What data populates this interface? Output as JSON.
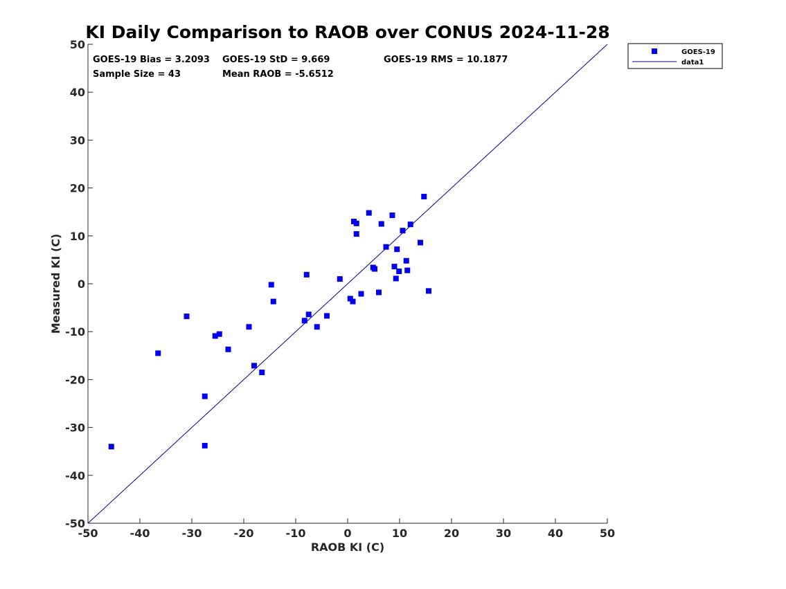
{
  "chart_data": {
    "type": "scatter",
    "title": "KI Daily Comparison to RAOB over CONUS 2024-11-28",
    "xlabel": "RAOB KI (C)",
    "ylabel": "Measured KI (C)",
    "xlim": [
      -50,
      50
    ],
    "ylim": [
      -50,
      50
    ],
    "xticks": [
      -50,
      -40,
      -30,
      -20,
      -10,
      0,
      10,
      20,
      30,
      40,
      50
    ],
    "yticks": [
      -50,
      -40,
      -30,
      -20,
      -10,
      0,
      10,
      20,
      30,
      40,
      50
    ],
    "xtick_labels": [
      "-50",
      "-40",
      "-30",
      "-20",
      "-10",
      "0",
      "10",
      "20",
      "30",
      "40",
      "50"
    ],
    "ytick_labels": [
      "-50",
      "-40",
      "-30",
      "-20",
      "-10",
      "0",
      "10",
      "20",
      "30",
      "40",
      "50"
    ],
    "grid": false,
    "legend_position": "outside-top-right",
    "stats": {
      "bias": "GOES-19 Bias = 3.2093",
      "std": "GOES-19 StD = 9.669",
      "rms": "GOES-19 RMS = 10.1877",
      "sample": "Sample Size = 43",
      "mean": "Mean RAOB = -5.6512"
    },
    "series": [
      {
        "name": "GOES-19",
        "kind": "scatter",
        "marker": "square",
        "color": "#0000ee",
        "points": [
          [
            -45.5,
            -34.0
          ],
          [
            -36.5,
            -14.5
          ],
          [
            -31.0,
            -6.8
          ],
          [
            -27.5,
            -23.5
          ],
          [
            -27.5,
            -33.8
          ],
          [
            -25.5,
            -10.9
          ],
          [
            -24.7,
            -10.5
          ],
          [
            -23.0,
            -13.7
          ],
          [
            -19.0,
            -9.0
          ],
          [
            -18.0,
            -17.1
          ],
          [
            -16.5,
            -18.5
          ],
          [
            -14.7,
            -0.2
          ],
          [
            -14.3,
            -3.7
          ],
          [
            -8.3,
            -7.7
          ],
          [
            -7.9,
            1.9
          ],
          [
            -7.5,
            -6.4
          ],
          [
            -5.9,
            -9.0
          ],
          [
            -4.0,
            -6.7
          ],
          [
            -1.5,
            1.0
          ],
          [
            0.5,
            -3.1
          ],
          [
            1.0,
            -3.7
          ],
          [
            1.2,
            13.0
          ],
          [
            1.7,
            12.6
          ],
          [
            1.7,
            10.4
          ],
          [
            2.6,
            -2.1
          ],
          [
            4.1,
            14.8
          ],
          [
            4.9,
            3.4
          ],
          [
            6.0,
            -1.8
          ],
          [
            6.5,
            12.5
          ],
          [
            7.4,
            7.7
          ],
          [
            8.6,
            14.3
          ],
          [
            9.0,
            3.6
          ],
          [
            9.3,
            1.1
          ],
          [
            9.5,
            7.2
          ],
          [
            9.9,
            2.6
          ],
          [
            10.6,
            11.1
          ],
          [
            11.3,
            4.8
          ],
          [
            11.5,
            2.8
          ],
          [
            12.1,
            12.4
          ],
          [
            14.0,
            8.6
          ],
          [
            14.7,
            18.2
          ],
          [
            15.6,
            -1.5
          ],
          [
            5.2,
            3.1
          ]
        ]
      },
      {
        "name": "data1",
        "kind": "line",
        "color": "#00008b",
        "x": [
          -50,
          50
        ],
        "y": [
          -50,
          50
        ]
      }
    ]
  }
}
